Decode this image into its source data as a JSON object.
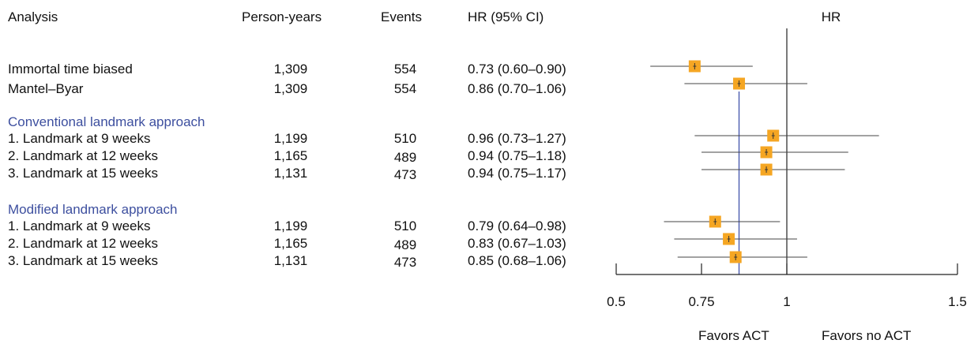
{
  "headers": {
    "analysis": "Analysis",
    "person_years": "Person-years",
    "events": "Events",
    "hr_ci": "HR (95% CI)",
    "hr": "HR"
  },
  "sections": {
    "conventional": "Conventional landmark approach",
    "modified": "Modified landmark approach"
  },
  "rows": [
    {
      "label": "Immortal time biased",
      "person_years": "1,309",
      "events": "554",
      "hr_text": "0.73 (0.60–0.90)"
    },
    {
      "label": "Mantel–Byar",
      "person_years": "1,309",
      "events": "554",
      "hr_text": "0.86 (0.70–1.06)"
    },
    {
      "label": "1. Landmark at 9 weeks",
      "person_years": "1,199",
      "events": "510",
      "hr_text": "0.96 (0.73–1.27)"
    },
    {
      "label": "2. Landmark at 12 weeks",
      "person_years": "1,165",
      "events": "489",
      "hr_text": "0.94 (0.75–1.18)"
    },
    {
      "label": "3. Landmark at 15 weeks",
      "person_years": "1,131",
      "events": "473",
      "hr_text": "0.94 (0.75–1.17)"
    },
    {
      "label": "1. Landmark at 9 weeks",
      "person_years": "1,199",
      "events": "510",
      "hr_text": "0.79 (0.64–0.98)"
    },
    {
      "label": "2. Landmark at 12 weeks",
      "person_years": "1,165",
      "events": "489",
      "hr_text": "0.83 (0.67–1.03)"
    },
    {
      "label": "3. Landmark at 15 weeks",
      "person_years": "1,131",
      "events": "473",
      "hr_text": "0.85 (0.68–1.06)"
    }
  ],
  "footer": {
    "left": "Favors ACT",
    "right": "Favors no ACT"
  },
  "chart_data": {
    "type": "forest",
    "xlabel": "HR",
    "xlim": [
      0.5,
      1.5
    ],
    "ticks": [
      0.5,
      0.75,
      1,
      1.5
    ],
    "tick_labels": [
      "0.5",
      "0.75",
      "1",
      "1.5"
    ],
    "null_line": 1,
    "reference_line": 0.86,
    "marker_color": "#f5a623",
    "reference_color": "#4a5bb0",
    "points": [
      {
        "hr": 0.73,
        "lower": 0.6,
        "upper": 0.9
      },
      {
        "hr": 0.86,
        "lower": 0.7,
        "upper": 1.06
      },
      {
        "hr": 0.96,
        "lower": 0.73,
        "upper": 1.27
      },
      {
        "hr": 0.94,
        "lower": 0.75,
        "upper": 1.18
      },
      {
        "hr": 0.94,
        "lower": 0.75,
        "upper": 1.17
      },
      {
        "hr": 0.79,
        "lower": 0.64,
        "upper": 0.98
      },
      {
        "hr": 0.83,
        "lower": 0.67,
        "upper": 1.03
      },
      {
        "hr": 0.85,
        "lower": 0.68,
        "upper": 1.06
      }
    ]
  }
}
